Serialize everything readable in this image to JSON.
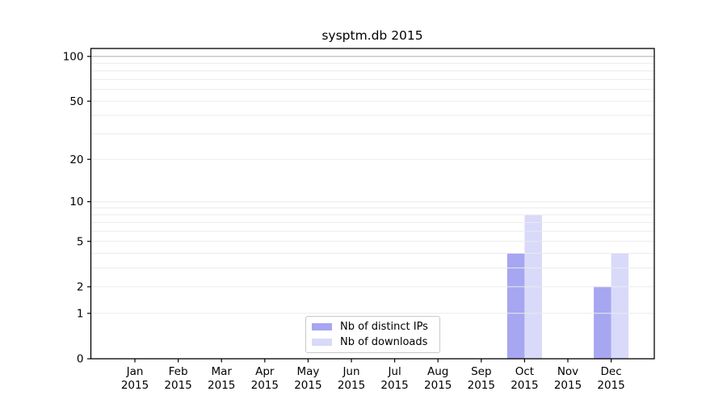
{
  "chart_data": {
    "type": "bar",
    "title": "sysptm.db 2015",
    "categories": [
      "Jan 2015",
      "Feb 2015",
      "Mar 2015",
      "Apr 2015",
      "May 2015",
      "Jun 2015",
      "Jul 2015",
      "Aug 2015",
      "Sep 2015",
      "Oct 2015",
      "Nov 2015",
      "Dec 2015"
    ],
    "series": [
      {
        "name": "Nb of distinct IPs",
        "color": "#a6a6f1",
        "values": [
          0,
          0,
          0,
          0,
          0,
          0,
          0,
          0,
          0,
          4,
          0,
          2
        ]
      },
      {
        "name": "Nb of downloads",
        "color": "#d9d9f9",
        "values": [
          0,
          0,
          0,
          0,
          0,
          0,
          0,
          0,
          0,
          8,
          0,
          4
        ]
      }
    ],
    "xlabel": "",
    "ylabel": "",
    "yscale": "log1p",
    "ylim": [
      0,
      113
    ],
    "yticks": [
      0,
      1,
      2,
      5,
      10,
      20,
      50,
      100
    ],
    "yticks_minor": [
      3,
      4,
      6,
      7,
      8,
      9,
      30,
      40,
      60,
      70,
      80,
      90
    ],
    "grid": "horizontal",
    "grid_color": "#ebebeb",
    "reference_line": {
      "y": 100,
      "color": "#b5b5b5"
    },
    "spine_color": "#000000",
    "text_color": "#000000",
    "legend_position": "bottom-center"
  }
}
